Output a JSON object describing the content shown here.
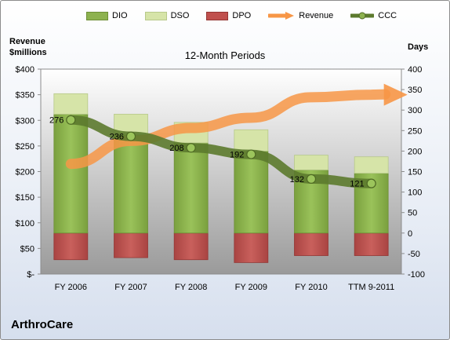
{
  "chart_data": {
    "type": "bar",
    "title": "12-Month Periods",
    "company": "ArthroCare",
    "left_axis_title": [
      "Revenue",
      "$millions"
    ],
    "right_axis_title": "Days",
    "categories": [
      "FY 2006",
      "FY 2007",
      "FY 2008",
      "FY 2009",
      "FY 2010",
      "TTM 9-2011"
    ],
    "left_axis": {
      "min": 0,
      "max": 400,
      "step": 50,
      "tick_labels": [
        "$-",
        "$50",
        "$100",
        "$150",
        "$200",
        "$250",
        "$300",
        "$350",
        "$400"
      ]
    },
    "right_axis": {
      "min": -100,
      "max": 400,
      "step": 50,
      "tick_labels": [
        "-100",
        "-50",
        "0",
        "50",
        "100",
        "150",
        "200",
        "250",
        "300",
        "350",
        "400"
      ]
    },
    "series": [
      {
        "name": "DIO",
        "axis": "days",
        "color": "#8db24f",
        "values": [
          290,
          240,
          220,
          200,
          154,
          146
        ]
      },
      {
        "name": "DSO",
        "axis": "days",
        "color": "#d6e4a8",
        "values": [
          50,
          50,
          50,
          52,
          36,
          40
        ]
      },
      {
        "name": "DPO",
        "axis": "days",
        "color": "#c0504d",
        "values": [
          -65,
          -60,
          -65,
          -72,
          -55,
          -55
        ]
      },
      {
        "name": "Revenue",
        "axis": "revenue",
        "color": "#f79646",
        "values": [
          215,
          260,
          285,
          305,
          345,
          350
        ]
      },
      {
        "name": "CCC",
        "axis": "days",
        "color": "#5c7a2e",
        "values": [
          276,
          236,
          208,
          192,
          132,
          121
        ],
        "data_labels": [
          "276",
          "236",
          "208",
          "192",
          "132",
          "121"
        ]
      }
    ],
    "grid": false,
    "legend_position": "top"
  }
}
